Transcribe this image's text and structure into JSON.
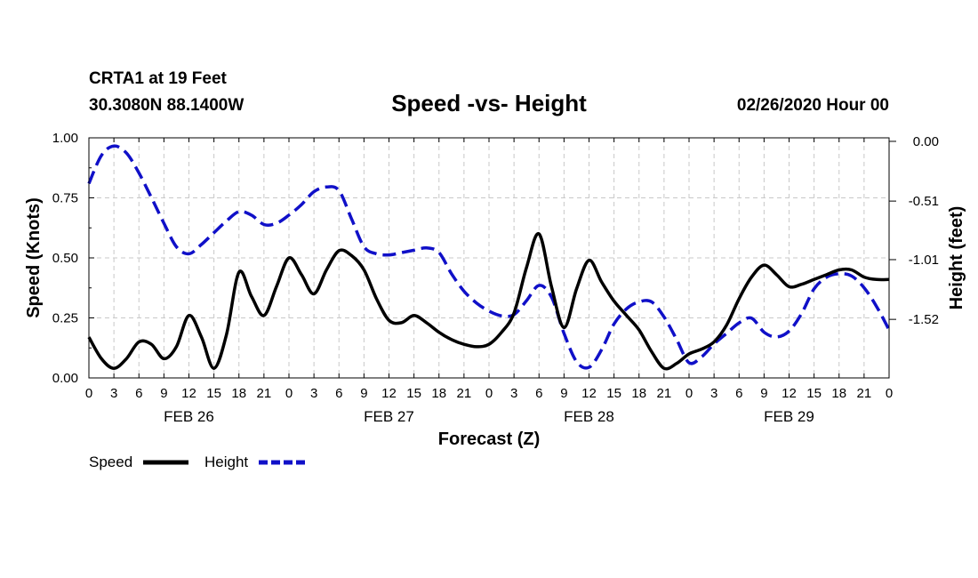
{
  "chart_data": {
    "type": "line",
    "station": "CRTA1 at 19 Feet",
    "location": "30.3080N 88.1400W",
    "title": "Speed -vs- Height",
    "issued": "02/26/2020 Hour 00",
    "xlabel": "Forecast (Z)",
    "ylabel_left": "Speed (Knots)",
    "ylabel_right": "Height (feet)",
    "ylim_left": [
      0,
      1
    ],
    "ylim_right": [
      -2.02,
      0.03
    ],
    "yticks_left": [
      "0.00",
      "0.25",
      "0.50",
      "0.75",
      "1.00"
    ],
    "yticks_right": [
      {
        "label": "0.00",
        "value": 0.0
      },
      {
        "label": "-0.51",
        "value": -0.51
      },
      {
        "label": "-1.01",
        "value": -1.01
      },
      {
        "label": "-1.52",
        "value": -1.52
      }
    ],
    "x_hour_range": [
      0,
      96
    ],
    "x_ticks": [
      {
        "h": 0,
        "label": "0"
      },
      {
        "h": 3,
        "label": "3"
      },
      {
        "h": 6,
        "label": "6"
      },
      {
        "h": 9,
        "label": "9"
      },
      {
        "h": 12,
        "label": "12"
      },
      {
        "h": 15,
        "label": "15"
      },
      {
        "h": 18,
        "label": "18"
      },
      {
        "h": 21,
        "label": "21"
      },
      {
        "h": 24,
        "label": "0"
      },
      {
        "h": 27,
        "label": "3"
      },
      {
        "h": 30,
        "label": "6"
      },
      {
        "h": 33,
        "label": "9"
      },
      {
        "h": 36,
        "label": "12"
      },
      {
        "h": 39,
        "label": "15"
      },
      {
        "h": 42,
        "label": "18"
      },
      {
        "h": 45,
        "label": "21"
      },
      {
        "h": 48,
        "label": "0"
      },
      {
        "h": 51,
        "label": "3"
      },
      {
        "h": 54,
        "label": "6"
      },
      {
        "h": 57,
        "label": "9"
      },
      {
        "h": 60,
        "label": "12"
      },
      {
        "h": 63,
        "label": "15"
      },
      {
        "h": 66,
        "label": "18"
      },
      {
        "h": 69,
        "label": "21"
      },
      {
        "h": 72,
        "label": "0"
      },
      {
        "h": 75,
        "label": "3"
      },
      {
        "h": 78,
        "label": "6"
      },
      {
        "h": 81,
        "label": "9"
      },
      {
        "h": 84,
        "label": "12"
      },
      {
        "h": 87,
        "label": "15"
      },
      {
        "h": 90,
        "label": "18"
      },
      {
        "h": 93,
        "label": "21"
      },
      {
        "h": 96,
        "label": "0"
      }
    ],
    "date_labels": [
      {
        "h": 12,
        "label": "FEB 26"
      },
      {
        "h": 36,
        "label": "FEB 27"
      },
      {
        "h": 60,
        "label": "FEB 28"
      },
      {
        "h": 84,
        "label": "FEB 29"
      }
    ],
    "series": [
      {
        "name": "Speed",
        "axis": "left",
        "color": "#000000",
        "style": "solid",
        "x": [
          0,
          1.5,
          3,
          4.5,
          6,
          7.5,
          9,
          10.5,
          12,
          13.5,
          15,
          16.5,
          18,
          19.5,
          21,
          22.5,
          24,
          25.5,
          27,
          28.5,
          30,
          31.5,
          33,
          34.5,
          36,
          37.5,
          39,
          40.5,
          42,
          43.5,
          45,
          46.5,
          48,
          49.5,
          51,
          52.5,
          54,
          55.5,
          57,
          58.5,
          60,
          61.5,
          63,
          64.5,
          66,
          67.5,
          69,
          70.5,
          72,
          73.5,
          75,
          76.5,
          78,
          79.5,
          81,
          82.5,
          84,
          85.5,
          87,
          88.5,
          90,
          91.5,
          93,
          94.5,
          96
        ],
        "values": [
          0.17,
          0.08,
          0.04,
          0.08,
          0.15,
          0.14,
          0.08,
          0.13,
          0.26,
          0.17,
          0.04,
          0.18,
          0.44,
          0.34,
          0.26,
          0.38,
          0.5,
          0.43,
          0.35,
          0.45,
          0.53,
          0.51,
          0.45,
          0.33,
          0.24,
          0.23,
          0.26,
          0.23,
          0.19,
          0.16,
          0.14,
          0.13,
          0.14,
          0.19,
          0.27,
          0.46,
          0.6,
          0.38,
          0.21,
          0.37,
          0.49,
          0.4,
          0.32,
          0.26,
          0.2,
          0.11,
          0.04,
          0.06,
          0.1,
          0.12,
          0.15,
          0.22,
          0.33,
          0.42,
          0.47,
          0.43,
          0.38,
          0.39,
          0.41,
          0.43,
          0.45,
          0.45,
          0.42,
          0.41,
          0.41
        ]
      },
      {
        "name": "Height",
        "axis": "right",
        "color": "#1010c8",
        "style": "dashed",
        "x": [
          0,
          1.5,
          3,
          4.5,
          6,
          7.5,
          9,
          10.5,
          12,
          13.5,
          15,
          16.5,
          18,
          19.5,
          21,
          22.5,
          24,
          25.5,
          27,
          28.5,
          30,
          31.5,
          33,
          34.5,
          36,
          37.5,
          39,
          40.5,
          42,
          43.5,
          45,
          46.5,
          48,
          49.5,
          51,
          52.5,
          54,
          55.5,
          57,
          58.5,
          60,
          61.5,
          63,
          64.5,
          66,
          67.5,
          69,
          70.5,
          72,
          73.5,
          75,
          76.5,
          78,
          79.5,
          81,
          82.5,
          84,
          85.5,
          87,
          88.5,
          90,
          91.5,
          93,
          94.5,
          96
        ],
        "values": [
          -0.36,
          -0.12,
          -0.04,
          -0.1,
          -0.27,
          -0.48,
          -0.7,
          -0.9,
          -0.96,
          -0.88,
          -0.78,
          -0.68,
          -0.6,
          -0.63,
          -0.71,
          -0.7,
          -0.63,
          -0.54,
          -0.43,
          -0.39,
          -0.42,
          -0.66,
          -0.9,
          -0.96,
          -0.97,
          -0.95,
          -0.93,
          -0.91,
          -0.95,
          -1.13,
          -1.28,
          -1.38,
          -1.45,
          -1.49,
          -1.48,
          -1.36,
          -1.23,
          -1.33,
          -1.64,
          -1.88,
          -1.93,
          -1.78,
          -1.56,
          -1.43,
          -1.37,
          -1.37,
          -1.5,
          -1.69,
          -1.89,
          -1.84,
          -1.73,
          -1.64,
          -1.55,
          -1.51,
          -1.63,
          -1.67,
          -1.62,
          -1.47,
          -1.26,
          -1.16,
          -1.13,
          -1.15,
          -1.25,
          -1.41,
          -1.61
        ]
      }
    ],
    "legend": [
      {
        "label": "Speed",
        "color": "#000000",
        "style": "solid"
      },
      {
        "label": "Height",
        "color": "#1010c8",
        "style": "dashed"
      }
    ]
  }
}
